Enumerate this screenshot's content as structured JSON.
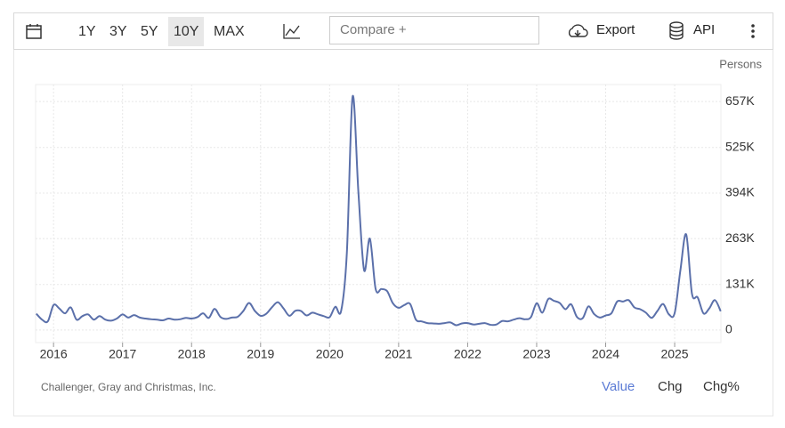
{
  "toolbar": {
    "ranges": [
      "1Y",
      "3Y",
      "5Y",
      "10Y",
      "MAX"
    ],
    "selected_range": 3,
    "compare_placeholder": "Compare +",
    "export": "Export",
    "api": "API"
  },
  "chart_data": {
    "type": "line",
    "unit": "Persons",
    "color": "#5b70aa",
    "grid": true,
    "y_axis_side": "right",
    "x": [
      2015.75,
      2015.833,
      2015.917,
      2016,
      2016.083,
      2016.167,
      2016.25,
      2016.333,
      2016.417,
      2016.5,
      2016.583,
      2016.667,
      2016.75,
      2016.833,
      2016.917,
      2017,
      2017.083,
      2017.167,
      2017.25,
      2017.333,
      2017.417,
      2017.5,
      2017.583,
      2017.667,
      2017.75,
      2017.833,
      2017.917,
      2018,
      2018.083,
      2018.167,
      2018.25,
      2018.333,
      2018.417,
      2018.5,
      2018.583,
      2018.667,
      2018.75,
      2018.833,
      2018.917,
      2019,
      2019.083,
      2019.167,
      2019.25,
      2019.333,
      2019.417,
      2019.5,
      2019.583,
      2019.667,
      2019.75,
      2019.833,
      2019.917,
      2020,
      2020.083,
      2020.167,
      2020.25,
      2020.333,
      2020.417,
      2020.5,
      2020.583,
      2020.667,
      2020.75,
      2020.833,
      2020.917,
      2021,
      2021.083,
      2021.167,
      2021.25,
      2021.333,
      2021.417,
      2021.5,
      2021.583,
      2021.667,
      2021.75,
      2021.833,
      2021.917,
      2022,
      2022.083,
      2022.167,
      2022.25,
      2022.333,
      2022.417,
      2022.5,
      2022.583,
      2022.667,
      2022.75,
      2022.833,
      2022.917,
      2023,
      2023.083,
      2023.167,
      2023.25,
      2023.333,
      2023.417,
      2023.5,
      2023.583,
      2023.667,
      2023.75,
      2023.833,
      2023.917,
      2024,
      2024.083,
      2024.167,
      2024.25,
      2024.333,
      2024.417,
      2024.5,
      2024.583,
      2024.667,
      2024.75,
      2024.833,
      2024.917,
      2025,
      2025.083,
      2025.167,
      2025.25,
      2025.333,
      2025.417,
      2025.5,
      2025.583,
      2025.667
    ],
    "values": [
      47000,
      30000,
      25000,
      72000,
      62000,
      48000,
      65000,
      30000,
      40000,
      45000,
      30000,
      40000,
      30000,
      27000,
      33000,
      45000,
      36000,
      43000,
      36000,
      33000,
      31000,
      30000,
      28000,
      33000,
      30000,
      31000,
      35000,
      33000,
      37000,
      48000,
      35000,
      61000,
      38000,
      32000,
      36000,
      38000,
      55000,
      78000,
      55000,
      41000,
      47000,
      66000,
      80000,
      62000,
      41000,
      55000,
      55000,
      42000,
      50000,
      45000,
      40000,
      37000,
      67000,
      55000,
      222000,
      671000,
      397000,
      172000,
      263000,
      118000,
      118000,
      112000,
      77000,
      64000,
      72000,
      75000,
      30000,
      25000,
      20000,
      19000,
      18000,
      20000,
      22000,
      14000,
      19000,
      20000,
      16000,
      18000,
      20000,
      15000,
      16000,
      26000,
      25000,
      30000,
      34000,
      31000,
      37000,
      77000,
      50000,
      89000,
      84000,
      78000,
      60000,
      74000,
      38000,
      34000,
      68000,
      46000,
      36000,
      42000,
      48000,
      82000,
      82000,
      86000,
      65000,
      60000,
      50000,
      35000,
      55000,
      75000,
      45000,
      49000,
      172000,
      275000,
      105000,
      94000,
      48000,
      62000,
      86000,
      54000
    ],
    "xlim": [
      2015.74,
      2025.67
    ],
    "xticks": [
      2016,
      2017,
      2018,
      2019,
      2020,
      2021,
      2022,
      2023,
      2024,
      2025
    ],
    "ylim": [
      -36000,
      706000
    ],
    "yticks": [
      0,
      {
        "value": 131000,
        "label": "131K"
      },
      {
        "value": 263000,
        "label": "263K"
      },
      {
        "value": 394000,
        "label": "394K"
      },
      {
        "value": 525000,
        "label": "525K"
      },
      {
        "value": 657000,
        "label": "657K"
      }
    ]
  },
  "footer": {
    "source": "Challenger, Gray and Christmas, Inc.",
    "tabs": [
      "Value",
      "Chg",
      "Chg%"
    ],
    "selected_tab": 0
  }
}
